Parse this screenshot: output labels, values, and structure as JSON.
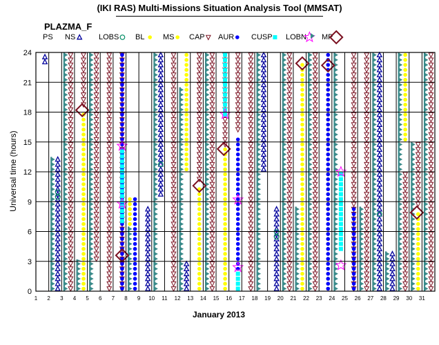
{
  "title": "(IKI RAS) Multi-Missions Situation Analysis Tool (MMSAT)",
  "dataset": "PLAZMA_F",
  "colors": {
    "PS": "#00009c",
    "NS": "#00009c",
    "LOBS": "#008c64",
    "BL": "#ffff00",
    "MS": "#ffff00",
    "CAP": "#7a1020",
    "AUR": "#0000ff",
    "CUSP": "#00ffff",
    "LOBN": "#ff00ff",
    "MP": "#7a1020",
    "SHEET": "#3a8a8a",
    "GRID": "#000000"
  },
  "chart_data": {
    "type": "scatter",
    "xlabel": "January 2013",
    "ylabel": "Universal time (hours)",
    "xlim": [
      1,
      32
    ],
    "ylim": [
      0,
      24
    ],
    "xticks": [
      1,
      2,
      3,
      4,
      5,
      6,
      7,
      8,
      9,
      10,
      11,
      12,
      13,
      14,
      15,
      16,
      17,
      18,
      19,
      20,
      21,
      22,
      23,
      24,
      25,
      26,
      27,
      28,
      29,
      30,
      31
    ],
    "yticks": [
      0,
      3,
      6,
      9,
      12,
      15,
      18,
      21,
      24
    ],
    "grid": true,
    "legend": [
      {
        "key": "PS",
        "label": "PS",
        "marker": "sheet"
      },
      {
        "key": "NS",
        "label": "NS",
        "marker": "triangle-up"
      },
      {
        "key": "LOBS",
        "label": "LOBS",
        "marker": "circle-open"
      },
      {
        "key": "BL",
        "label": "BL",
        "marker": "dot"
      },
      {
        "key": "MS",
        "label": "MS",
        "marker": "dot"
      },
      {
        "key": "CAP",
        "label": "CAP",
        "marker": "triangle-down"
      },
      {
        "key": "AUR",
        "label": "AUR",
        "marker": "dot"
      },
      {
        "key": "CUSP",
        "label": "CUSP",
        "marker": "square"
      },
      {
        "key": "LOBN",
        "label": "LOBN",
        "marker": "star"
      },
      {
        "key": "MP",
        "label": "MP",
        "marker": "diamond"
      }
    ],
    "series": [
      {
        "name": "PS",
        "segments": [
          [
            2.3,
            0,
            13.5
          ],
          [
            3.3,
            0,
            24
          ],
          [
            4.3,
            0,
            3.2
          ],
          [
            5.3,
            0,
            24
          ],
          [
            8.3,
            0,
            6.5
          ],
          [
            10.3,
            0,
            24
          ],
          [
            12.3,
            0,
            20.5
          ],
          [
            14.3,
            0,
            24
          ],
          [
            18.3,
            0,
            24
          ],
          [
            20.3,
            0,
            24
          ],
          [
            21.3,
            0,
            8.5
          ],
          [
            22.3,
            0,
            24
          ],
          [
            24.3,
            0,
            24
          ],
          [
            26.3,
            0,
            8.5
          ],
          [
            27.3,
            0,
            24
          ],
          [
            28.3,
            0,
            4
          ],
          [
            29.3,
            0,
            24
          ],
          [
            30.3,
            0,
            15
          ],
          [
            31.3,
            0,
            24
          ]
        ]
      },
      {
        "name": "NS",
        "segments": [
          [
            1.7,
            22.8,
            24
          ],
          [
            2.7,
            0,
            13.5
          ],
          [
            9.7,
            0,
            8.6
          ],
          [
            10.7,
            9.5,
            24
          ],
          [
            12.7,
            0,
            3.2
          ],
          [
            18.7,
            12,
            24
          ],
          [
            19.7,
            0,
            8.6
          ],
          [
            27.7,
            0,
            24
          ],
          [
            28.7,
            0,
            4
          ]
        ]
      },
      {
        "name": "LOBS",
        "segments": [
          [
            2.7,
            9.2,
            10.3
          ],
          [
            10.7,
            12.5,
            13.2
          ],
          [
            19.7,
            5.2,
            6
          ],
          [
            27.7,
            7.5,
            8
          ]
        ]
      },
      {
        "name": "BL",
        "segments": [
          [
            8.3,
            6.5,
            9.5
          ],
          [
            13.7,
            0,
            8.5
          ]
        ]
      },
      {
        "name": "MS",
        "segments": [
          [
            4.7,
            0,
            18
          ],
          [
            12.7,
            12,
            24
          ],
          [
            13.7,
            8.5,
            10.5
          ],
          [
            15.7,
            0,
            14.5
          ],
          [
            21.7,
            0,
            23
          ],
          [
            23.7,
            0,
            22.5
          ],
          [
            29.7,
            15,
            24
          ],
          [
            30.7,
            0,
            8
          ]
        ]
      },
      {
        "name": "CAP",
        "segments": [
          [
            3.7,
            0,
            24
          ],
          [
            4.7,
            18.5,
            24
          ],
          [
            5.7,
            3,
            24
          ],
          [
            6.7,
            0,
            24
          ],
          [
            7.7,
            0,
            24
          ],
          [
            11.7,
            0,
            24
          ],
          [
            13.7,
            11,
            24
          ],
          [
            14.7,
            0,
            24
          ],
          [
            15.7,
            14.5,
            24
          ],
          [
            16.7,
            16,
            24
          ],
          [
            17.7,
            0,
            24
          ],
          [
            20.7,
            0,
            24
          ],
          [
            22.7,
            0,
            24
          ],
          [
            25.7,
            0,
            24
          ],
          [
            26.7,
            0,
            24
          ],
          [
            29.7,
            0,
            12
          ],
          [
            30.7,
            8.5,
            15
          ],
          [
            31.7,
            0,
            24
          ]
        ]
      },
      {
        "name": "AUR",
        "segments": [
          [
            7.7,
            0,
            24
          ],
          [
            8.7,
            0,
            9.5
          ],
          [
            16.7,
            0,
            15.5
          ],
          [
            23.7,
            0,
            24
          ],
          [
            25.7,
            0,
            8.5
          ]
        ]
      },
      {
        "name": "CUSP",
        "segments": [
          [
            7.7,
            6.8,
            14.5
          ],
          [
            15.7,
            17.5,
            24
          ],
          [
            16.7,
            0,
            1.8
          ],
          [
            24.7,
            4,
            11.8
          ]
        ]
      },
      {
        "name": "LOBN",
        "points": [
          [
            7.7,
            8.8
          ],
          [
            7.7,
            14.6
          ],
          [
            15.7,
            17.8
          ],
          [
            16.7,
            2.4
          ],
          [
            16.7,
            9.2
          ],
          [
            24.7,
            2.6
          ],
          [
            24.7,
            12
          ]
        ]
      },
      {
        "name": "MP",
        "points": [
          [
            4.6,
            18.2
          ],
          [
            7.7,
            3.6
          ],
          [
            13.7,
            10.6
          ],
          [
            15.6,
            14.3
          ],
          [
            21.7,
            22.9
          ],
          [
            23.7,
            22.7
          ],
          [
            30.6,
            7.9
          ]
        ]
      }
    ]
  }
}
